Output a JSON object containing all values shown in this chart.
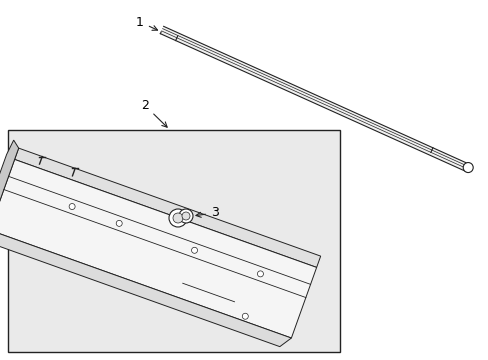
{
  "background_color": "#ffffff",
  "box_fill": "#eaeaea",
  "line_color": "#222222",
  "label_color": "#000000",
  "fig_width": 4.89,
  "fig_height": 3.6,
  "dpi": 100,
  "part1_label": "1",
  "part2_label": "2",
  "part3_label": "3"
}
